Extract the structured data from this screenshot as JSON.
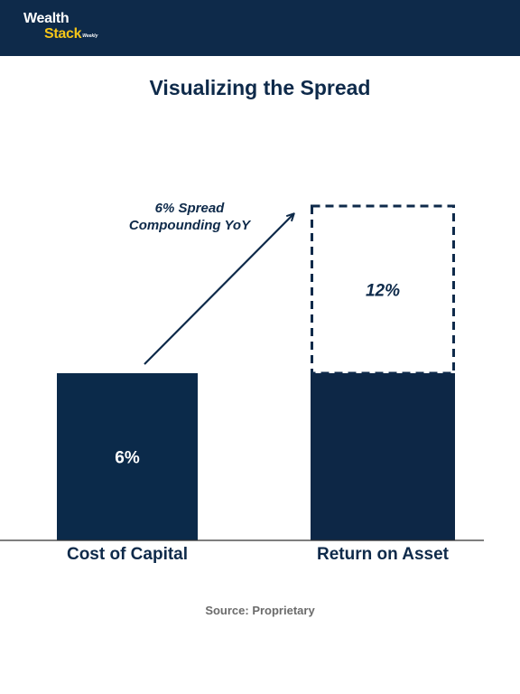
{
  "header": {
    "logo_line1": "Wealth",
    "logo_line2": "Stack",
    "logo_tag": "Weekly"
  },
  "colors": {
    "header_bg": "#0e2a4a",
    "bar_dark": "#0b2a4a",
    "bar_darker": "#0d2746",
    "logo_accent": "#f5c518"
  },
  "chart_data": {
    "type": "bar",
    "title": "Visualizing the Spread",
    "categories": [
      "Cost of Capital",
      "Return on Asset"
    ],
    "series": [
      {
        "values": [
          6,
          6
        ]
      }
    ],
    "extension": {
      "category_index": 1,
      "from": 6,
      "to": 12,
      "style": "dashed-outline"
    },
    "data_labels": [
      "6%",
      "12%"
    ],
    "annotation": {
      "lines": [
        "6% Spread",
        "Compounding YoY"
      ],
      "arrow": true
    },
    "ylim": [
      0,
      12
    ]
  },
  "source": "Source: Proprietary"
}
